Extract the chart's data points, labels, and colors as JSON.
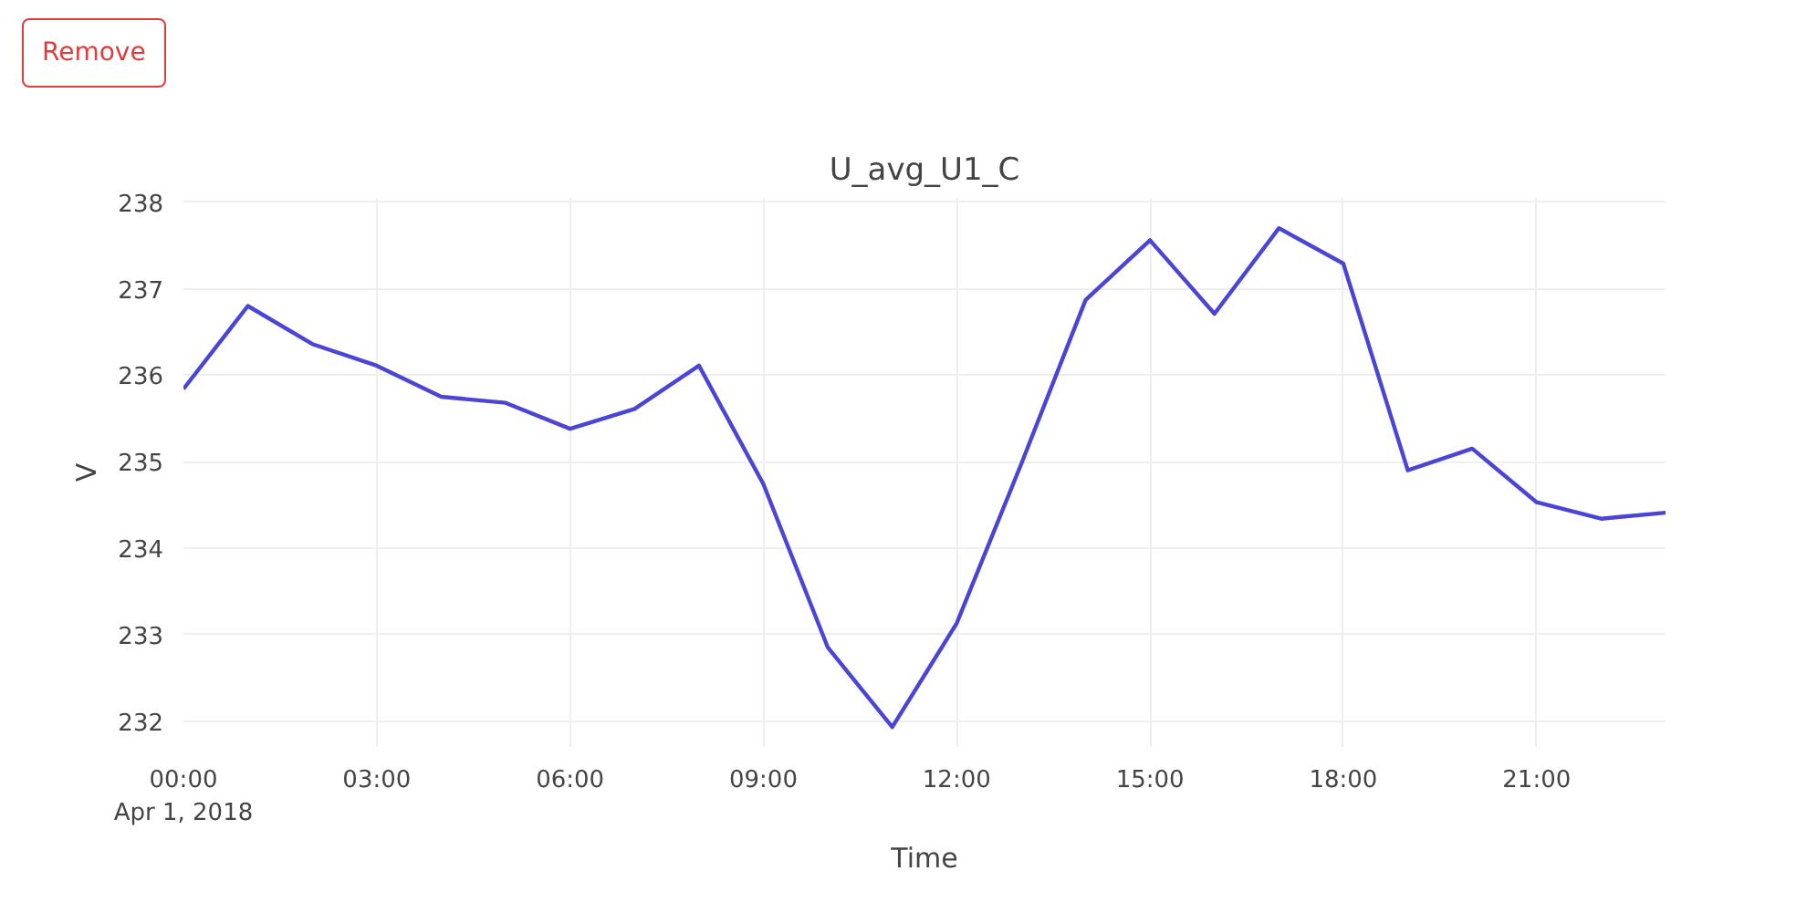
{
  "chart_data": {
    "type": "line",
    "title": "U_avg_U1_C",
    "xlabel": "Time",
    "ylabel": "V",
    "annotations": [
      "Remove"
    ],
    "x": [
      0,
      1,
      2,
      3,
      4,
      5,
      6,
      7,
      8,
      9,
      10,
      11,
      12,
      13,
      14,
      15,
      16,
      17,
      18,
      19,
      20,
      21,
      22,
      23
    ],
    "series": [
      {
        "color": "#4b45d6",
        "values": [
          235.84,
          236.8,
          236.36,
          236.11,
          235.75,
          235.68,
          235.38,
          235.61,
          236.11,
          234.74,
          232.85,
          231.93,
          233.13,
          234.97,
          236.87,
          237.56,
          236.71,
          237.7,
          237.29,
          234.9,
          235.15,
          234.53,
          234.34,
          234.41
        ]
      }
    ],
    "xlim": [
      0,
      23
    ],
    "ylim": [
      231.7,
      238.05
    ],
    "xticks": [
      {
        "value": 0,
        "label": "00:00\nApr 1, 2018"
      },
      {
        "value": 3,
        "label": "03:00"
      },
      {
        "value": 6,
        "label": "06:00"
      },
      {
        "value": 9,
        "label": "09:00"
      },
      {
        "value": 12,
        "label": "12:00"
      },
      {
        "value": 15,
        "label": "15:00"
      },
      {
        "value": 18,
        "label": "18:00"
      },
      {
        "value": 21,
        "label": "21:00"
      }
    ],
    "yticks": [
      232,
      233,
      234,
      235,
      236,
      237,
      238
    ],
    "grid": true,
    "line_style": "solid"
  }
}
